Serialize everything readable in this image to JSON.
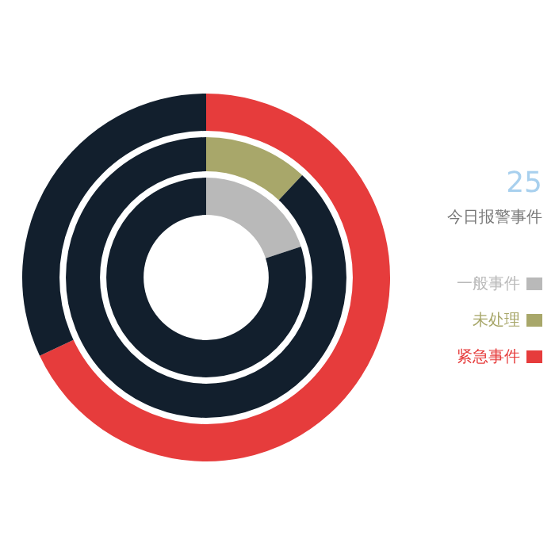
{
  "chart_data": {
    "type": "donut",
    "title": "25",
    "subtitle": "今日报警事件",
    "categories": [
      null,
      null
    ],
    "legend": "right",
    "series": [
      {
        "name": "一般事件",
        "color": "#b9b9b9",
        "colors": [
          "#b9b9b9",
          "#121f2d"
        ],
        "values": [
          20,
          80
        ]
      },
      {
        "name": "未处理",
        "color": "#a8a76a",
        "colors": [
          "#a8a76a",
          "#121f2d"
        ],
        "values": [
          12,
          88
        ]
      },
      {
        "name": "紧急事件",
        "color": "#e63c3c",
        "colors": [
          "#e63c3c",
          "#121f2d"
        ],
        "values": [
          68,
          32
        ]
      }
    ]
  }
}
